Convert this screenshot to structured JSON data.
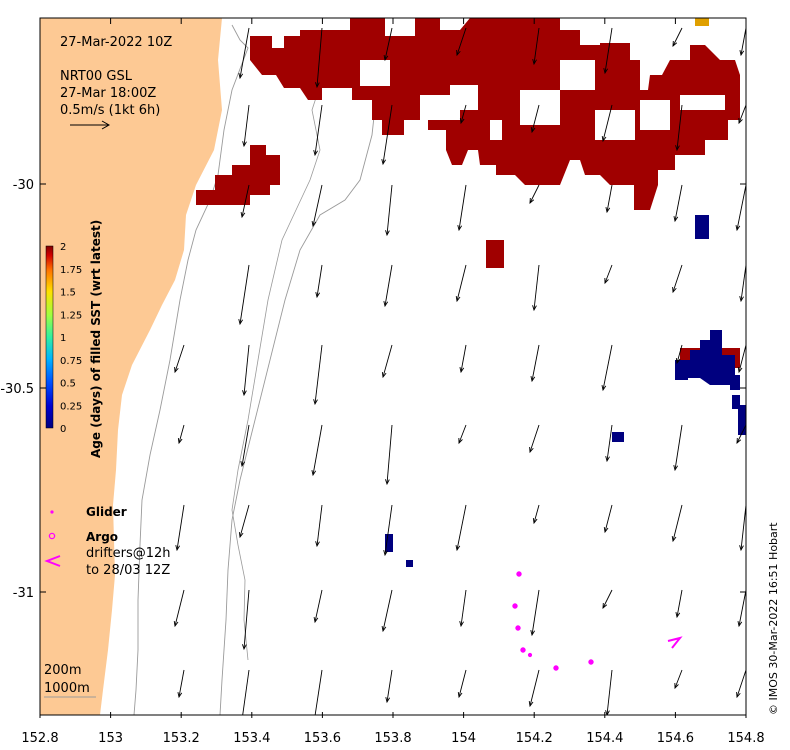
{
  "map": {
    "header": {
      "timestamp": "27-Mar-2022 10Z",
      "product": "NRT00 GSL",
      "product_time": "27-Mar 18:00Z",
      "arrow_scale": "0.5m/s (1kt 6h)"
    },
    "x_ticks": [
      "152.8",
      "153",
      "153.2",
      "153.4",
      "153.6",
      "153.8",
      "154",
      "154.2",
      "154.4",
      "154.6",
      "154.8"
    ],
    "y_ticks": [
      "-30",
      "-30.5",
      "-31"
    ],
    "colorbar": {
      "label": "Age (days) of filled SST (wrt latest)",
      "ticks": [
        "2",
        "1.75",
        "1.5",
        "1.25",
        "1",
        "0.75",
        "0.5",
        "0.25",
        "0"
      ],
      "colors": [
        "#00007f",
        "#0000d0",
        "#0060ff",
        "#00c0ff",
        "#40ffc0",
        "#a0ff60",
        "#ffe000",
        "#ff8000",
        "#e00000",
        "#800000"
      ]
    },
    "legend": {
      "glider": "Glider",
      "argo": "Argo",
      "drifters_line1": "drifters@12h",
      "drifters_line2": "to 28/03 12Z"
    },
    "isobaths": [
      "200m",
      "1000m"
    ],
    "credit": "© IMOS 30-Mar-2022 16:51 Hobart",
    "colors": {
      "land": "#fdc994",
      "sst_old": "#a00000",
      "sst_new": "#00007f",
      "argo": "#ff00ff"
    }
  }
}
